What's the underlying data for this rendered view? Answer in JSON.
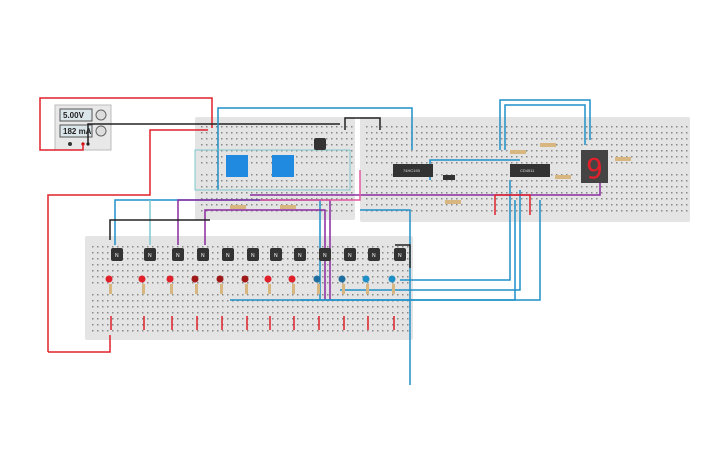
{
  "power_supply": {
    "voltage": "5.00V",
    "current": "182 mA"
  },
  "chips": [
    {
      "label": "74HC193"
    },
    {
      "label": "CD4511"
    }
  ],
  "seven_segment": {
    "digit": "9",
    "color": "#e0202a"
  },
  "transistor_label": "N",
  "transistor_count": 12,
  "colors": {
    "breadboard": "#e6e6e6",
    "wire_red": "#e0202a",
    "wire_blue": "#1e90c8",
    "wire_purple": "#8a2aa0",
    "wire_black": "#222222",
    "dip_switch": "#1f8ae0"
  }
}
